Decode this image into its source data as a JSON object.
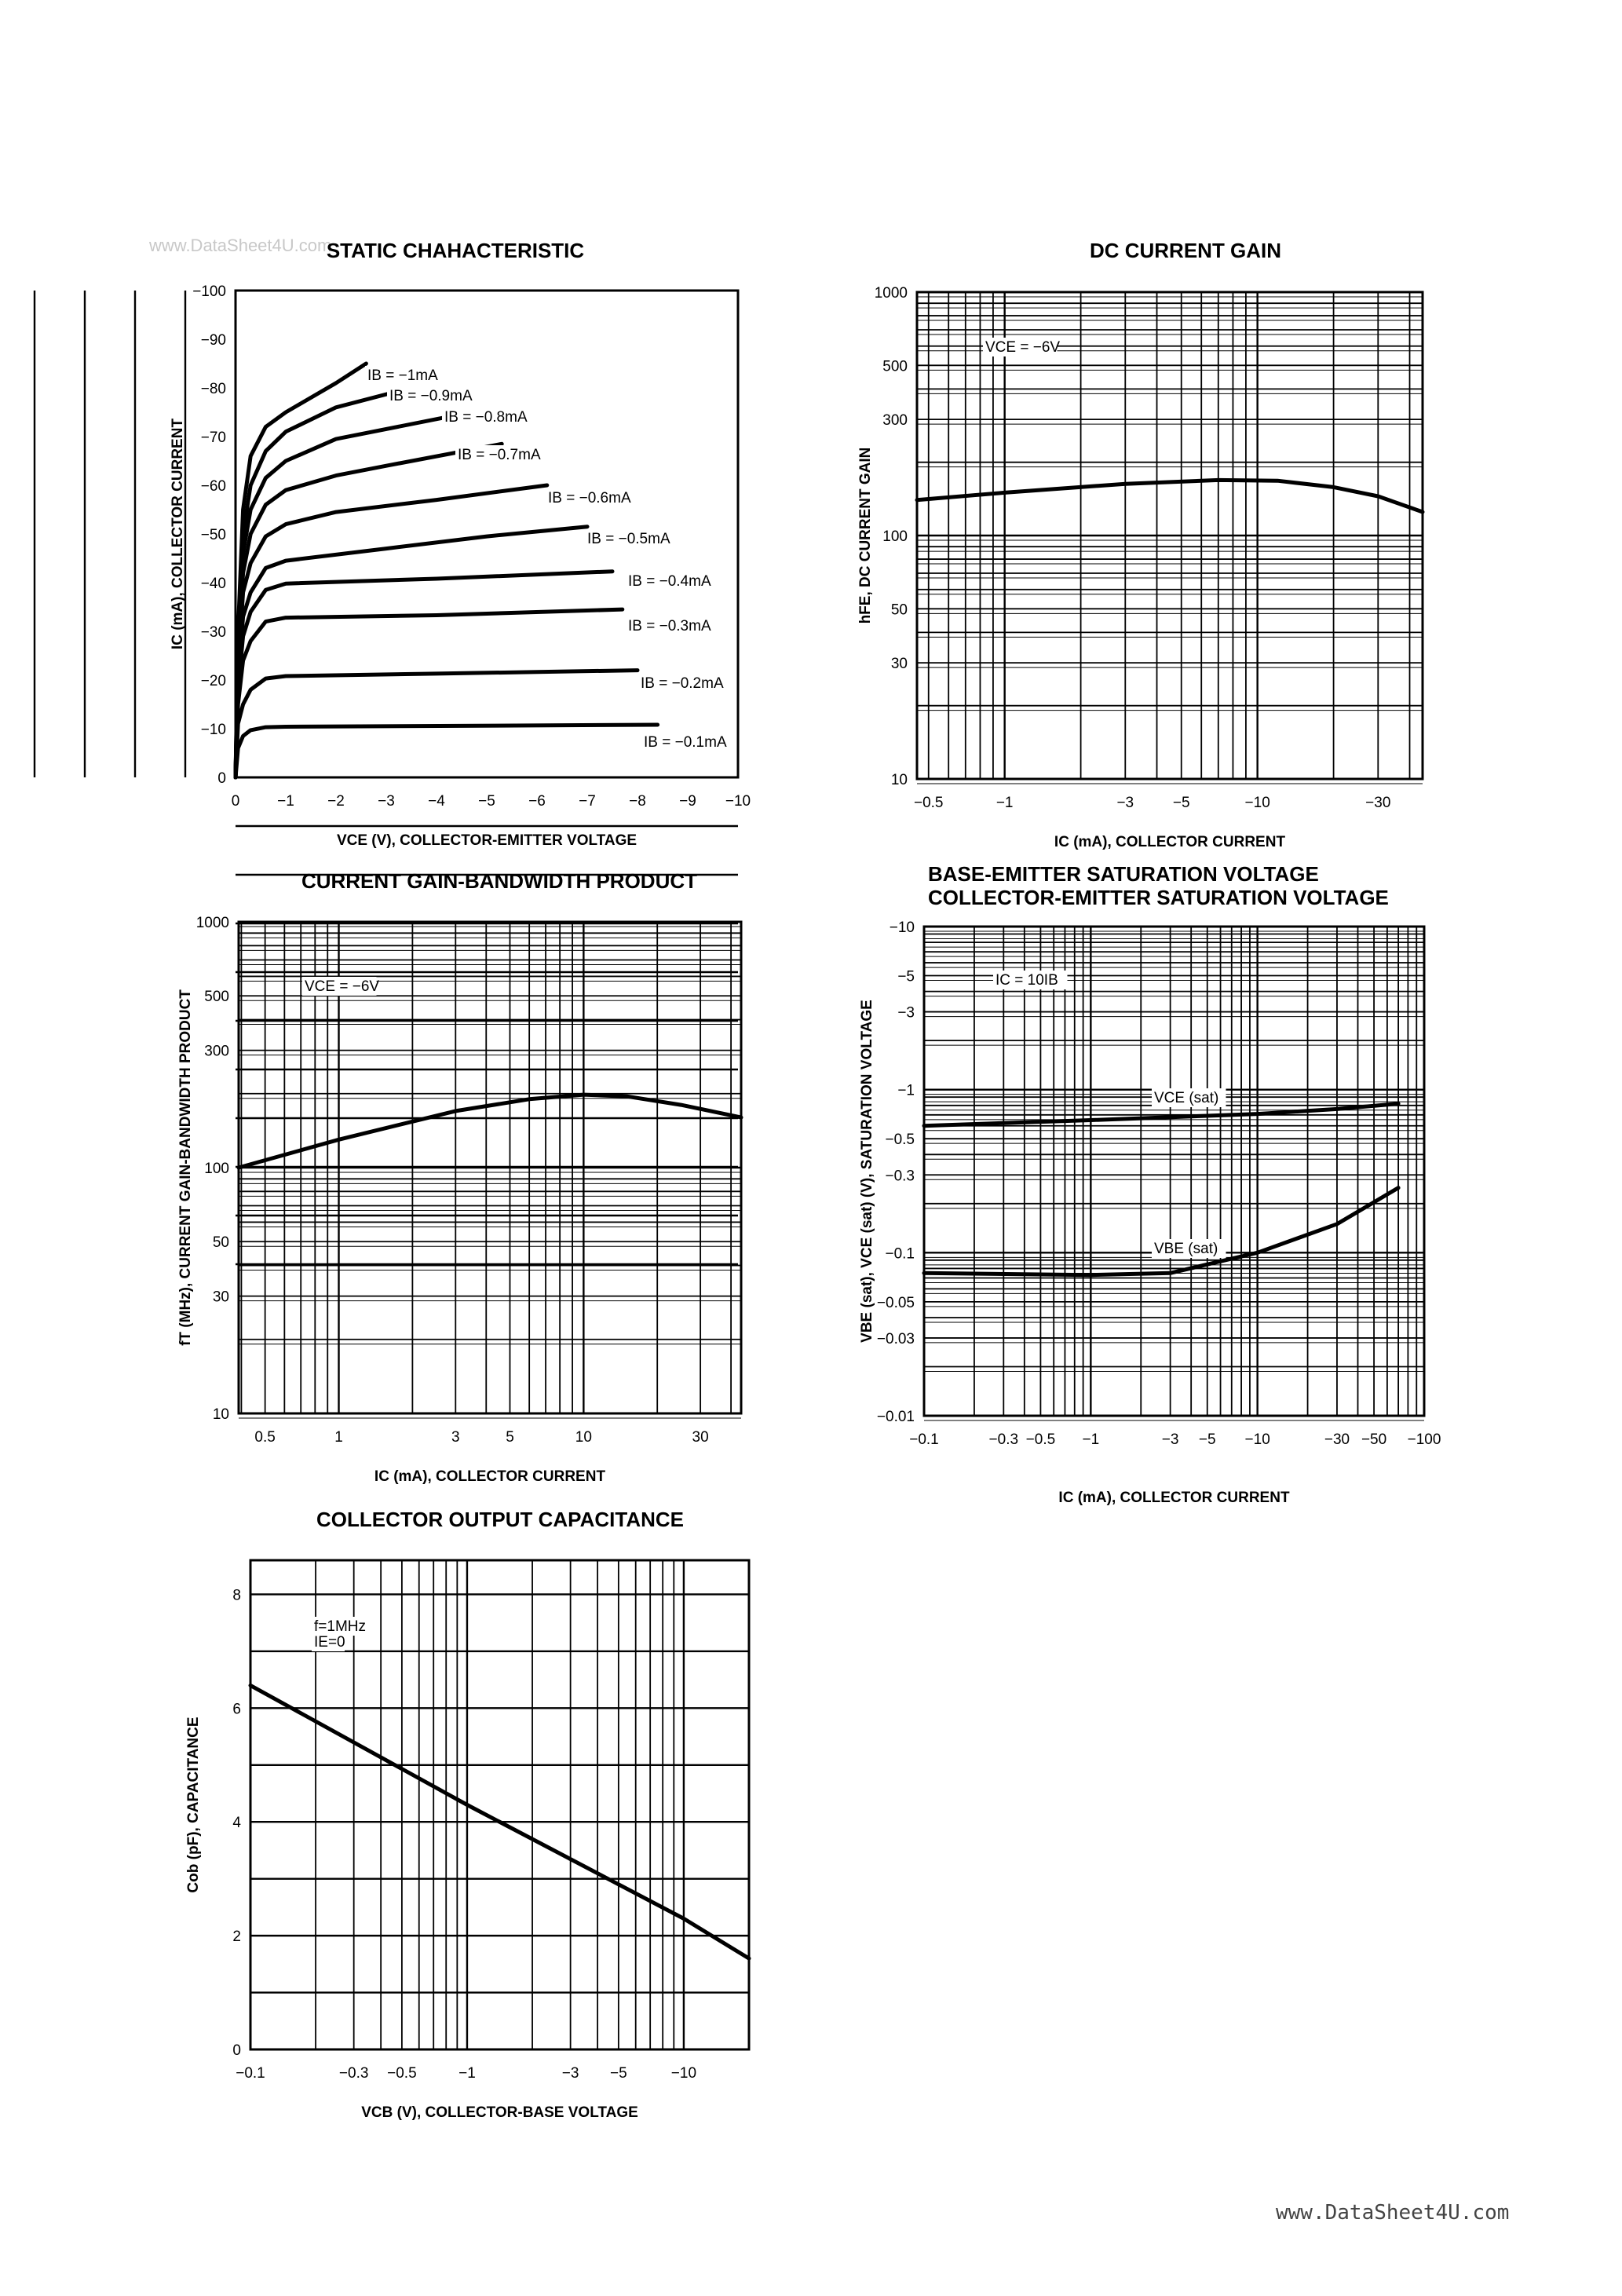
{
  "watermark": "www.DataSheet4U.com",
  "footer": "www.DataSheet4U.com",
  "chart_data": [
    {
      "type": "line",
      "title": "STATIC CHAHACTERISTIC",
      "xlabel": "VCE (V), COLLECTOR-EMITTER VOLTAGE",
      "ylabel": "IC (mA), COLLECTOR CURRENT",
      "x_scale": "linear",
      "y_scale": "linear",
      "xlim": [
        0,
        -10
      ],
      "ylim": [
        0,
        -100
      ],
      "grid": true,
      "xticks": [
        {
          "v": 0,
          "t": "0"
        },
        {
          "v": -1,
          "t": "−1"
        },
        {
          "v": -2,
          "t": "−2"
        },
        {
          "v": -3,
          "t": "−3"
        },
        {
          "v": -4,
          "t": "−4"
        },
        {
          "v": -5,
          "t": "−5"
        },
        {
          "v": -6,
          "t": "−6"
        },
        {
          "v": -7,
          "t": "−7"
        },
        {
          "v": -8,
          "t": "−8"
        },
        {
          "v": -9,
          "t": "−9"
        },
        {
          "v": -10,
          "t": "−10"
        }
      ],
      "yticks": [
        {
          "v": 0,
          "t": "0"
        },
        {
          "v": -10,
          "t": "−10"
        },
        {
          "v": -20,
          "t": "−20"
        },
        {
          "v": -30,
          "t": "−30"
        },
        {
          "v": -40,
          "t": "−40"
        },
        {
          "v": -50,
          "t": "−50"
        },
        {
          "v": -60,
          "t": "−60"
        },
        {
          "v": -70,
          "t": "−70"
        },
        {
          "v": -80,
          "t": "−80"
        },
        {
          "v": -90,
          "t": "−90"
        },
        {
          "v": -100,
          "t": "−100"
        }
      ],
      "series": [
        {
          "name": "IB = −1mA",
          "points": [
            [
              0,
              0
            ],
            [
              -0.05,
              -30
            ],
            [
              -0.15,
              -55
            ],
            [
              -0.3,
              -66
            ],
            [
              -0.6,
              -72
            ],
            [
              -1,
              -75
            ],
            [
              -2,
              -81
            ],
            [
              -2.6,
              -85
            ]
          ]
        },
        {
          "name": "IB = −0.9mA",
          "points": [
            [
              0,
              0
            ],
            [
              -0.05,
              -28
            ],
            [
              -0.15,
              -50
            ],
            [
              -0.3,
              -60
            ],
            [
              -0.6,
              -67
            ],
            [
              -1,
              -71
            ],
            [
              -2,
              -76
            ],
            [
              -3.3,
              -79.5
            ]
          ]
        },
        {
          "name": "IB = −0.8mA",
          "points": [
            [
              0,
              0
            ],
            [
              -0.05,
              -26
            ],
            [
              -0.15,
              -46
            ],
            [
              -0.3,
              -55
            ],
            [
              -0.6,
              -61.5
            ],
            [
              -1,
              -65
            ],
            [
              -2,
              -69.5
            ],
            [
              -4.2,
              -74
            ]
          ]
        },
        {
          "name": "IB = −0.7mA",
          "points": [
            [
              0,
              0
            ],
            [
              -0.05,
              -24
            ],
            [
              -0.15,
              -42
            ],
            [
              -0.3,
              -50
            ],
            [
              -0.6,
              -56
            ],
            [
              -1,
              -59
            ],
            [
              -2,
              -62
            ],
            [
              -3,
              -64
            ],
            [
              -5.3,
              -68.5
            ]
          ]
        },
        {
          "name": "IB = −0.6mA",
          "points": [
            [
              0,
              0
            ],
            [
              -0.05,
              -22
            ],
            [
              -0.15,
              -38
            ],
            [
              -0.3,
              -44
            ],
            [
              -0.6,
              -49.5
            ],
            [
              -1,
              -52
            ],
            [
              -2,
              -54.5
            ],
            [
              -4,
              -57
            ],
            [
              -6.2,
              -60
            ]
          ]
        },
        {
          "name": "IB = −0.5mA",
          "points": [
            [
              0,
              0
            ],
            [
              -0.05,
              -20
            ],
            [
              -0.15,
              -33
            ],
            [
              -0.3,
              -38
            ],
            [
              -0.6,
              -43
            ],
            [
              -1,
              -44.5
            ],
            [
              -3,
              -47
            ],
            [
              -5,
              -49.5
            ],
            [
              -7,
              -51.5
            ]
          ]
        },
        {
          "name": "IB = −0.4mA",
          "points": [
            [
              0,
              0
            ],
            [
              -0.05,
              -18
            ],
            [
              -0.15,
              -29
            ],
            [
              -0.3,
              -34
            ],
            [
              -0.6,
              -38.5
            ],
            [
              -1,
              -39.8
            ],
            [
              -4,
              -40.8
            ],
            [
              -7.5,
              -42.3
            ]
          ]
        },
        {
          "name": "IB = −0.3mA",
          "points": [
            [
              0,
              0
            ],
            [
              -0.05,
              -15
            ],
            [
              -0.15,
              -24
            ],
            [
              -0.3,
              -28
            ],
            [
              -0.6,
              -32
            ],
            [
              -1,
              -32.8
            ],
            [
              -4,
              -33.3
            ],
            [
              -7.7,
              -34.5
            ]
          ]
        },
        {
          "name": "IB = −0.2mA",
          "points": [
            [
              0,
              0
            ],
            [
              -0.05,
              -11
            ],
            [
              -0.15,
              -15
            ],
            [
              -0.3,
              -18
            ],
            [
              -0.6,
              -20.3
            ],
            [
              -1,
              -20.8
            ],
            [
              -4,
              -21.3
            ],
            [
              -8,
              -22
            ]
          ]
        },
        {
          "name": "IB = −0.1mA",
          "points": [
            [
              0,
              0
            ],
            [
              -0.05,
              -6
            ],
            [
              -0.15,
              -8.5
            ],
            [
              -0.3,
              -9.7
            ],
            [
              -0.6,
              -10.3
            ],
            [
              -1,
              -10.4
            ],
            [
              -8.4,
              -10.8
            ]
          ]
        }
      ]
    },
    {
      "type": "line",
      "title": "DC CURRENT GAIN",
      "xlabel": "IC (mA), COLLECTOR CURRENT",
      "ylabel": "hFE, DC CURRENT GAIN",
      "annotation": "VCE = −6V",
      "x_scale": "log",
      "y_scale": "log",
      "xlim": [
        -0.45,
        -45
      ],
      "ylim": [
        10,
        1000
      ],
      "grid": true,
      "xticks": [
        {
          "v": -0.5,
          "t": "−0.5"
        },
        {
          "v": -1,
          "t": "−1"
        },
        {
          "v": -3,
          "t": "−3"
        },
        {
          "v": -5,
          "t": "−5"
        },
        {
          "v": -10,
          "t": "−10"
        },
        {
          "v": -30,
          "t": "−30"
        }
      ],
      "yticks": [
        {
          "v": 10,
          "t": "10"
        },
        {
          "v": 30,
          "t": "30"
        },
        {
          "v": 50,
          "t": "50"
        },
        {
          "v": 100,
          "t": "100"
        },
        {
          "v": 300,
          "t": "300"
        },
        {
          "v": 500,
          "t": "500"
        },
        {
          "v": 1000,
          "t": "1000"
        }
      ],
      "series": [
        {
          "points": [
            [
              -0.45,
              140
            ],
            [
              -1,
              150
            ],
            [
              -3,
              163
            ],
            [
              -7,
              169
            ],
            [
              -12,
              168
            ],
            [
              -20,
              158
            ],
            [
              -30,
              145
            ],
            [
              -45,
              125
            ]
          ]
        }
      ]
    },
    {
      "type": "line",
      "title": "CURRENT GAIN-BANDWIDTH PRODUCT",
      "xlabel": "IC (mA), COLLECTOR CURRENT",
      "ylabel": "fT (MHz), CURRENT GAIN-BANDWIDTH PRODUCT",
      "annotation": "VCE = −6V",
      "x_scale": "log",
      "y_scale": "log",
      "xlim": [
        0.39,
        44
      ],
      "ylim": [
        10,
        1000
      ],
      "grid": true,
      "xticks": [
        {
          "v": 0.5,
          "t": "0.5"
        },
        {
          "v": 1,
          "t": "1"
        },
        {
          "v": 3,
          "t": "3"
        },
        {
          "v": 5,
          "t": "5"
        },
        {
          "v": 10,
          "t": "10"
        },
        {
          "v": 30,
          "t": "30"
        }
      ],
      "yticks": [
        {
          "v": 10,
          "t": "10"
        },
        {
          "v": 30,
          "t": "30"
        },
        {
          "v": 50,
          "t": "50"
        },
        {
          "v": 100,
          "t": "100"
        },
        {
          "v": 300,
          "t": "300"
        },
        {
          "v": 500,
          "t": "500"
        },
        {
          "v": 1000,
          "t": "1000"
        }
      ],
      "series": [
        {
          "points": [
            [
              0.39,
              100
            ],
            [
              1,
              130
            ],
            [
              3,
              170
            ],
            [
              6,
              190
            ],
            [
              10,
              198
            ],
            [
              15,
              195
            ],
            [
              25,
              180
            ],
            [
              44,
              160
            ]
          ]
        }
      ]
    },
    {
      "type": "line",
      "title": "BASE-EMITTER SATURATION VOLTAGE",
      "subtitle": "COLLECTOR-EMITTER SATURATION VOLTAGE",
      "xlabel": "IC (mA), COLLECTOR CURRENT",
      "ylabel": "VBE (sat), VCE (sat) (V), SATURATION VOLTAGE",
      "annotation": "IC = 10IB",
      "x_scale": "log",
      "y_scale": "log",
      "xlim": [
        -0.1,
        -100
      ],
      "ylim": [
        -0.01,
        -10
      ],
      "grid": true,
      "xticks": [
        {
          "v": -0.1,
          "t": "−0.1"
        },
        {
          "v": -0.3,
          "t": "−0.3"
        },
        {
          "v": -0.5,
          "t": "−0.5"
        },
        {
          "v": -1,
          "t": "−1"
        },
        {
          "v": -3,
          "t": "−3"
        },
        {
          "v": -5,
          "t": "−5"
        },
        {
          "v": -10,
          "t": "−10"
        },
        {
          "v": -30,
          "t": "−30"
        },
        {
          "v": -50,
          "t": "−50"
        },
        {
          "v": -100,
          "t": "−100"
        }
      ],
      "yticks": [
        {
          "v": -0.01,
          "t": "−0.01"
        },
        {
          "v": -0.03,
          "t": "−0.03"
        },
        {
          "v": -0.05,
          "t": "−0.05"
        },
        {
          "v": -0.1,
          "t": "−0.1"
        },
        {
          "v": -0.3,
          "t": "−0.3"
        },
        {
          "v": -0.5,
          "t": "−0.5"
        },
        {
          "v": -1,
          "t": "−1"
        },
        {
          "v": -3,
          "t": "−3"
        },
        {
          "v": -5,
          "t": "−5"
        },
        {
          "v": -10,
          "t": "−10"
        }
      ],
      "series": [
        {
          "name": "VCE (sat)",
          "points": [
            [
              -0.1,
              -0.6
            ],
            [
              -1,
              -0.65
            ],
            [
              -10,
              -0.71
            ],
            [
              -30,
              -0.76
            ],
            [
              -70,
              -0.82
            ]
          ]
        },
        {
          "name": "VBE (sat)",
          "points": [
            [
              -0.1,
              -0.075
            ],
            [
              -1,
              -0.073
            ],
            [
              -3,
              -0.075
            ],
            [
              -10,
              -0.1
            ],
            [
              -30,
              -0.15
            ],
            [
              -70,
              -0.25
            ]
          ]
        }
      ]
    },
    {
      "type": "line",
      "title": "COLLECTOR OUTPUT CAPACITANCE",
      "xlabel": "VCB (V), COLLECTOR-BASE VOLTAGE",
      "ylabel": "Cob (pF), CAPACITANCE",
      "annotation": [
        "f=1MHz",
        "IE=0"
      ],
      "x_scale": "log",
      "y_scale": "linear",
      "xlim": [
        -0.1,
        -20
      ],
      "ylim": [
        0,
        8.6
      ],
      "grid": true,
      "xticks": [
        {
          "v": -0.1,
          "t": "−0.1"
        },
        {
          "v": -0.3,
          "t": "−0.3"
        },
        {
          "v": -0.5,
          "t": "−0.5"
        },
        {
          "v": -1,
          "t": "−1"
        },
        {
          "v": -3,
          "t": "−3"
        },
        {
          "v": -5,
          "t": "−5"
        },
        {
          "v": -10,
          "t": "−10"
        }
      ],
      "yticks": [
        {
          "v": 0,
          "t": "0"
        },
        {
          "v": 2,
          "t": "2"
        },
        {
          "v": 4,
          "t": "4"
        },
        {
          "v": 6,
          "t": "6"
        },
        {
          "v": 8,
          "t": "8"
        }
      ],
      "series": [
        {
          "points": [
            [
              -0.1,
              6.4
            ],
            [
              -1,
              4.3
            ],
            [
              -10,
              2.3
            ],
            [
              -20,
              1.6
            ]
          ]
        }
      ]
    }
  ]
}
